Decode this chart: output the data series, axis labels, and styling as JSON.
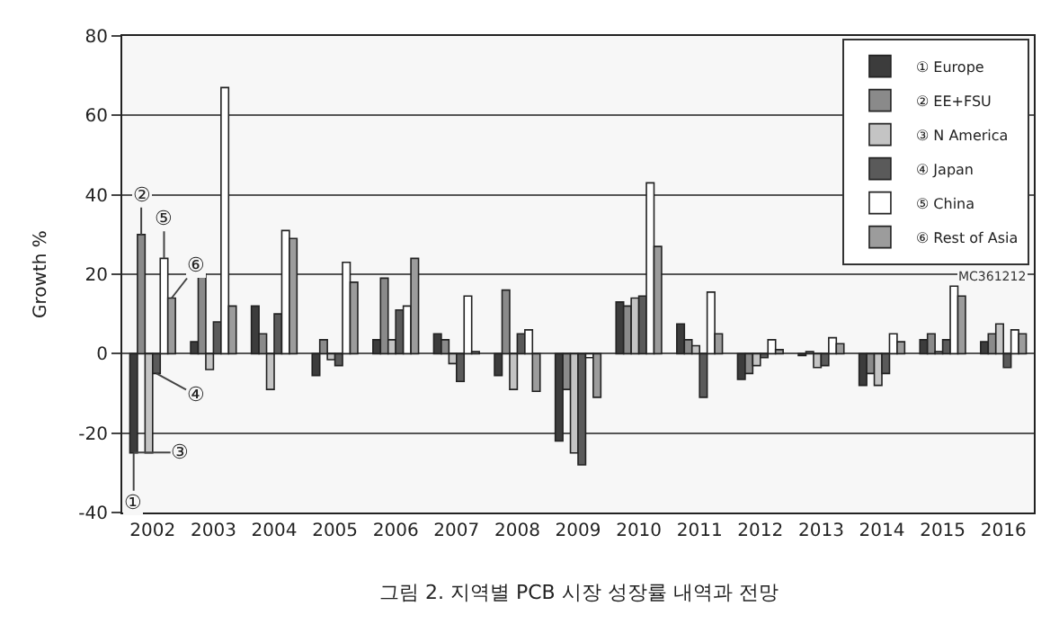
{
  "chart_data": {
    "type": "bar",
    "title": "그림 2. 지역별 PCB 시장 성장률 내역과 전망",
    "ylabel": "Growth %",
    "categories": [
      "2002",
      "2003",
      "2004",
      "2005",
      "2006",
      "2007",
      "2008",
      "2009",
      "2010",
      "2011",
      "2012",
      "2013",
      "2014",
      "2015",
      "2016"
    ],
    "series": [
      {
        "name": "① Europe",
        "color": "#3c3c3c",
        "values": [
          -25,
          3,
          12,
          -5.5,
          3.5,
          5,
          -5.5,
          -22,
          13,
          7.5,
          -6.5,
          -0.5,
          -8,
          3.5,
          3
        ]
      },
      {
        "name": "② EE+FSU",
        "color": "#8a8a8a",
        "values": [
          30,
          20,
          5,
          3.5,
          19,
          3.5,
          16,
          -9,
          12,
          3.5,
          -5,
          0.5,
          -5,
          5,
          5
        ]
      },
      {
        "name": "③ N America",
        "color": "#c4c4c4",
        "values": [
          -25,
          -4,
          -9,
          -1.5,
          3.5,
          -2.5,
          -9,
          -25,
          14,
          2,
          -3,
          -3.5,
          -8,
          0.5,
          7.5
        ]
      },
      {
        "name": "④ Japan",
        "color": "#5a5a5a",
        "values": [
          -5,
          8,
          10,
          -3,
          11,
          -7,
          5,
          -28,
          14.5,
          -11,
          -1,
          -3,
          -5,
          3.5,
          -3.5
        ]
      },
      {
        "name": "⑤ China",
        "color": "#ffffff",
        "values": [
          24,
          67,
          31,
          23,
          12,
          14.5,
          6,
          -1,
          43,
          15.5,
          3.5,
          4,
          5,
          17,
          6
        ]
      },
      {
        "name": "⑥ Rest of Asia",
        "color": "#9c9c9c",
        "values": [
          14,
          12,
          29,
          18,
          24,
          0.5,
          -9.5,
          -11,
          27,
          5,
          1,
          2.5,
          3,
          14.5,
          5
        ]
      }
    ],
    "annotations": [
      {
        "text": "①",
        "x": "2002",
        "y": -25
      },
      {
        "text": "②",
        "x": "2002",
        "y": 30
      },
      {
        "text": "③",
        "x": "2002",
        "y": -24.9
      },
      {
        "text": "④",
        "x": "2002",
        "y": -5
      },
      {
        "text": "⑤",
        "x": "2002",
        "y": 24
      },
      {
        "text": "⑥",
        "x": "2002",
        "y": 14
      },
      "MC361212"
    ],
    "ylim": [
      -40,
      80
    ],
    "yticks": [
      -40,
      -20,
      0,
      20,
      40,
      60,
      80
    ],
    "grid": "y",
    "legend": "top right"
  }
}
